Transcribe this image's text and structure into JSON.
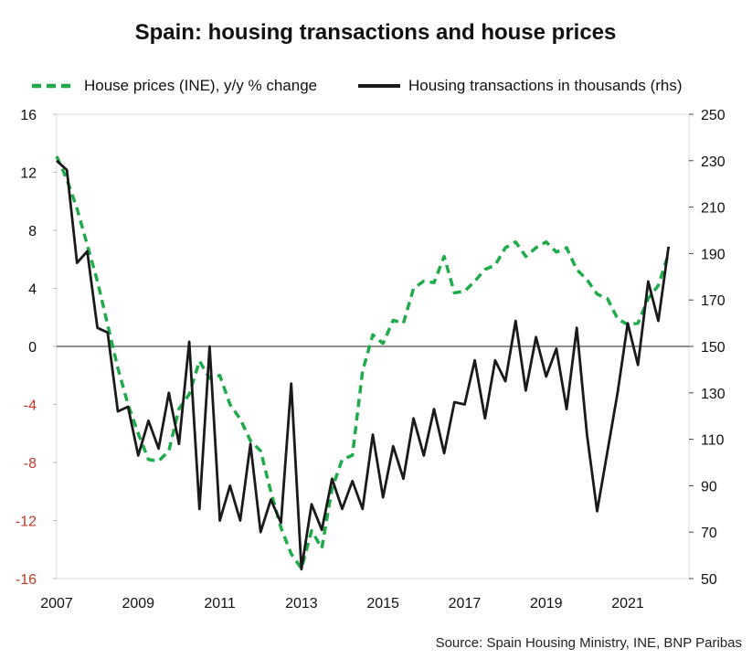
{
  "chart_data": {
    "type": "line",
    "title": "Spain: housing transactions and house prices",
    "source": "Source: Spain Housing Ministry, INE, BNP Paribas",
    "colors": {
      "prices": "#1faa4b",
      "transactions": "#1a1a1a",
      "negative_ticks": "#c0392b"
    },
    "x_range": [
      2007,
      2022.5
    ],
    "x_ticks": [
      "2007",
      "2009",
      "2011",
      "2013",
      "2015",
      "2017",
      "2019",
      "2021"
    ],
    "y_left": {
      "range": [
        -16,
        16
      ],
      "ticks": [
        "-16",
        "-12",
        "-8",
        "-4",
        "0",
        "4",
        "8",
        "12",
        "16"
      ]
    },
    "y_right": {
      "range": [
        50,
        250
      ],
      "ticks": [
        "50",
        "70",
        "90",
        "110",
        "130",
        "150",
        "170",
        "190",
        "210",
        "230",
        "250"
      ]
    },
    "series": [
      {
        "name": "House prices (INE), y/y % change",
        "axis": "left",
        "style": "dashed",
        "points": [
          [
            2007.0,
            13.1
          ],
          [
            2007.25,
            11.5
          ],
          [
            2007.5,
            9.5
          ],
          [
            2007.75,
            7.0
          ],
          [
            2008.0,
            4.5
          ],
          [
            2008.25,
            1.5
          ],
          [
            2008.5,
            -1.5
          ],
          [
            2008.75,
            -4.0
          ],
          [
            2009.0,
            -6.0
          ],
          [
            2009.25,
            -7.8
          ],
          [
            2009.5,
            -7.9
          ],
          [
            2009.75,
            -7.2
          ],
          [
            2010.0,
            -4.3
          ],
          [
            2010.25,
            -3.3
          ],
          [
            2010.5,
            -1.0
          ],
          [
            2010.75,
            -2.2
          ],
          [
            2011.0,
            -2.0
          ],
          [
            2011.25,
            -4.0
          ],
          [
            2011.5,
            -5.0
          ],
          [
            2011.75,
            -6.5
          ],
          [
            2012.0,
            -7.2
          ],
          [
            2012.25,
            -10.0
          ],
          [
            2012.5,
            -12.5
          ],
          [
            2012.75,
            -14.3
          ],
          [
            2013.0,
            -15.3
          ],
          [
            2013.25,
            -12.7
          ],
          [
            2013.5,
            -13.9
          ],
          [
            2013.75,
            -9.8
          ],
          [
            2014.0,
            -7.8
          ],
          [
            2014.25,
            -7.5
          ],
          [
            2014.5,
            -1.7
          ],
          [
            2014.75,
            0.8
          ],
          [
            2015.0,
            0.2
          ],
          [
            2015.25,
            1.8
          ],
          [
            2015.5,
            1.6
          ],
          [
            2015.75,
            4.0
          ],
          [
            2016.0,
            4.5
          ],
          [
            2016.25,
            4.4
          ],
          [
            2016.5,
            6.2
          ],
          [
            2016.75,
            3.7
          ],
          [
            2017.0,
            3.8
          ],
          [
            2017.25,
            4.5
          ],
          [
            2017.5,
            5.3
          ],
          [
            2017.75,
            5.6
          ],
          [
            2018.0,
            6.8
          ],
          [
            2018.25,
            7.2
          ],
          [
            2018.5,
            6.2
          ],
          [
            2018.75,
            6.8
          ],
          [
            2019.0,
            7.2
          ],
          [
            2019.25,
            6.5
          ],
          [
            2019.5,
            6.8
          ],
          [
            2019.75,
            5.3
          ],
          [
            2020.0,
            4.6
          ],
          [
            2020.25,
            3.6
          ],
          [
            2020.5,
            3.3
          ],
          [
            2020.75,
            1.9
          ],
          [
            2021.0,
            1.5
          ],
          [
            2021.25,
            1.6
          ],
          [
            2021.5,
            3.3
          ],
          [
            2021.75,
            4.2
          ],
          [
            2022.0,
            6.4
          ]
        ]
      },
      {
        "name": "Housing transactions in thousands (rhs)",
        "axis": "right",
        "style": "solid",
        "points": [
          [
            2007.0,
            230
          ],
          [
            2007.25,
            226
          ],
          [
            2007.5,
            186
          ],
          [
            2007.75,
            191
          ],
          [
            2008.0,
            158
          ],
          [
            2008.25,
            156
          ],
          [
            2008.5,
            122
          ],
          [
            2008.75,
            124
          ],
          [
            2009.0,
            103
          ],
          [
            2009.25,
            118
          ],
          [
            2009.5,
            106
          ],
          [
            2009.75,
            130
          ],
          [
            2010.0,
            108
          ],
          [
            2010.25,
            152
          ],
          [
            2010.5,
            80
          ],
          [
            2010.75,
            150
          ],
          [
            2011.0,
            75
          ],
          [
            2011.25,
            90
          ],
          [
            2011.5,
            75
          ],
          [
            2011.75,
            108
          ],
          [
            2012.0,
            70
          ],
          [
            2012.25,
            84
          ],
          [
            2012.5,
            74
          ],
          [
            2012.75,
            134
          ],
          [
            2013.0,
            54
          ],
          [
            2013.25,
            82
          ],
          [
            2013.5,
            71
          ],
          [
            2013.75,
            93
          ],
          [
            2014.0,
            80
          ],
          [
            2014.25,
            92
          ],
          [
            2014.5,
            80
          ],
          [
            2014.75,
            112
          ],
          [
            2015.0,
            85
          ],
          [
            2015.25,
            107
          ],
          [
            2015.5,
            93
          ],
          [
            2015.75,
            119
          ],
          [
            2016.0,
            103
          ],
          [
            2016.25,
            123
          ],
          [
            2016.5,
            104
          ],
          [
            2016.75,
            126
          ],
          [
            2017.0,
            125
          ],
          [
            2017.25,
            144
          ],
          [
            2017.5,
            119
          ],
          [
            2017.75,
            144
          ],
          [
            2018.0,
            135
          ],
          [
            2018.25,
            161
          ],
          [
            2018.5,
            131
          ],
          [
            2018.75,
            154
          ],
          [
            2019.0,
            137
          ],
          [
            2019.25,
            149
          ],
          [
            2019.5,
            123
          ],
          [
            2019.75,
            158
          ],
          [
            2020.0,
            112
          ],
          [
            2020.25,
            79
          ],
          [
            2020.75,
            130
          ],
          [
            2021.0,
            160
          ],
          [
            2021.25,
            142
          ],
          [
            2021.5,
            178
          ],
          [
            2021.75,
            161
          ],
          [
            2022.0,
            193
          ]
        ]
      }
    ]
  }
}
